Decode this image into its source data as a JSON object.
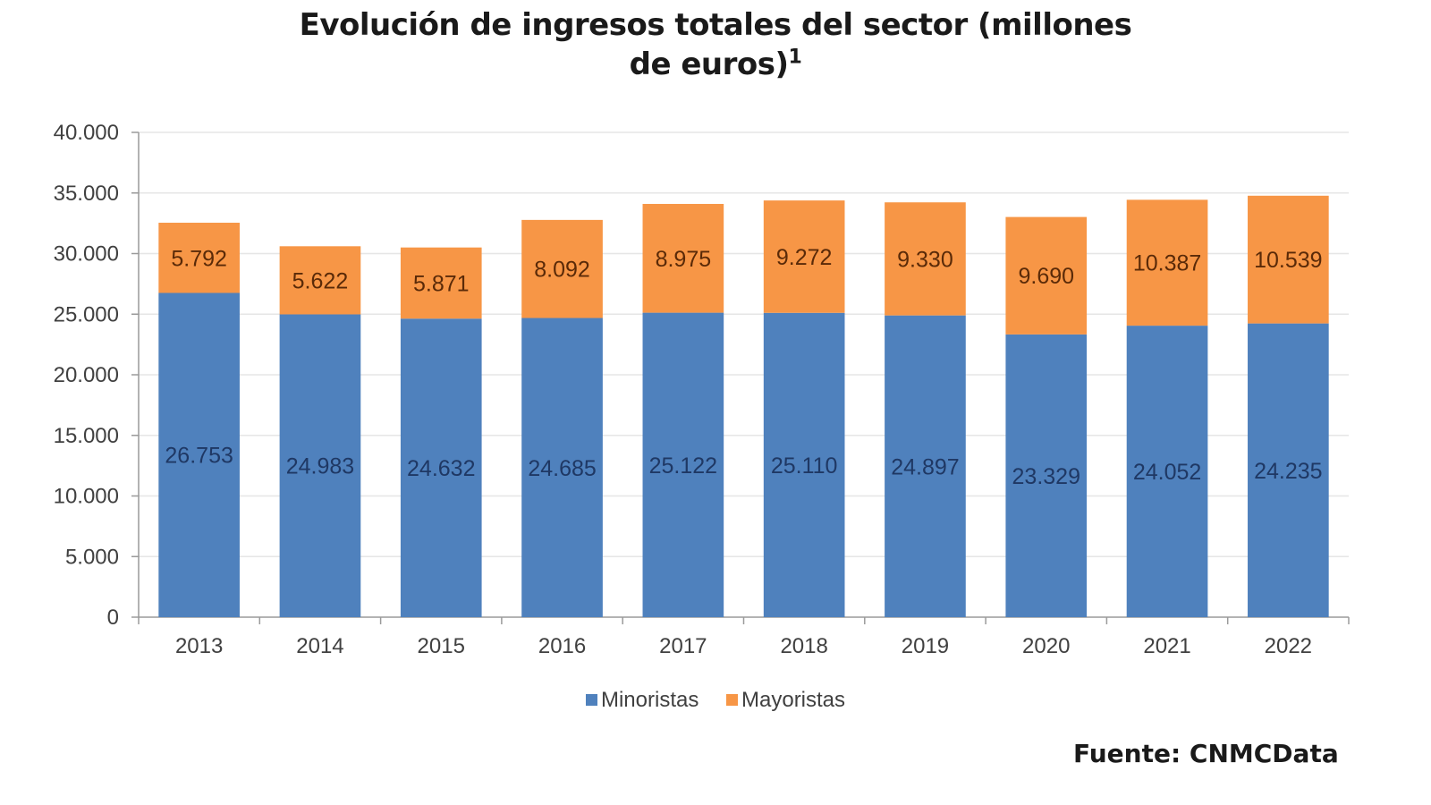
{
  "chart_data": {
    "type": "bar",
    "stacked": true,
    "title": "Evolución de ingresos totales del sector (millones de euros)",
    "title_line1": "Evolución de ingresos totales del sector (millones",
    "title_line2": "de euros)",
    "title_footnote": "1",
    "xlabel": "",
    "ylabel": "",
    "categories": [
      "2013",
      "2014",
      "2015",
      "2016",
      "2017",
      "2018",
      "2019",
      "2020",
      "2021",
      "2022"
    ],
    "series": [
      {
        "name": "Minoristas",
        "color": "#4f81bd",
        "values": [
          26753,
          24983,
          24632,
          24685,
          25122,
          25110,
          24897,
          23329,
          24052,
          24235
        ],
        "labels": [
          "26.753",
          "24.983",
          "24.632",
          "24.685",
          "25.122",
          "25.110",
          "24.897",
          "23.329",
          "24.052",
          "24.235"
        ]
      },
      {
        "name": "Mayoristas",
        "color": "#f79646",
        "values": [
          5792,
          5622,
          5871,
          8092,
          8975,
          9272,
          9330,
          9690,
          10387,
          10539
        ],
        "labels": [
          "5.792",
          "5.622",
          "5.871",
          "8.092",
          "8.975",
          "9.272",
          "9.330",
          "9.690",
          "10.387",
          "10.539"
        ]
      }
    ],
    "ylim": [
      0,
      40000
    ],
    "yticks": [
      0,
      5000,
      10000,
      15000,
      20000,
      25000,
      30000,
      35000,
      40000
    ],
    "ytick_labels": [
      "0",
      "5.000",
      "10.000",
      "15.000",
      "20.000",
      "25.000",
      "30.000",
      "35.000",
      "40.000"
    ],
    "grid": true,
    "legend_position": "bottom-center",
    "source": "Fuente: CNMCData"
  }
}
